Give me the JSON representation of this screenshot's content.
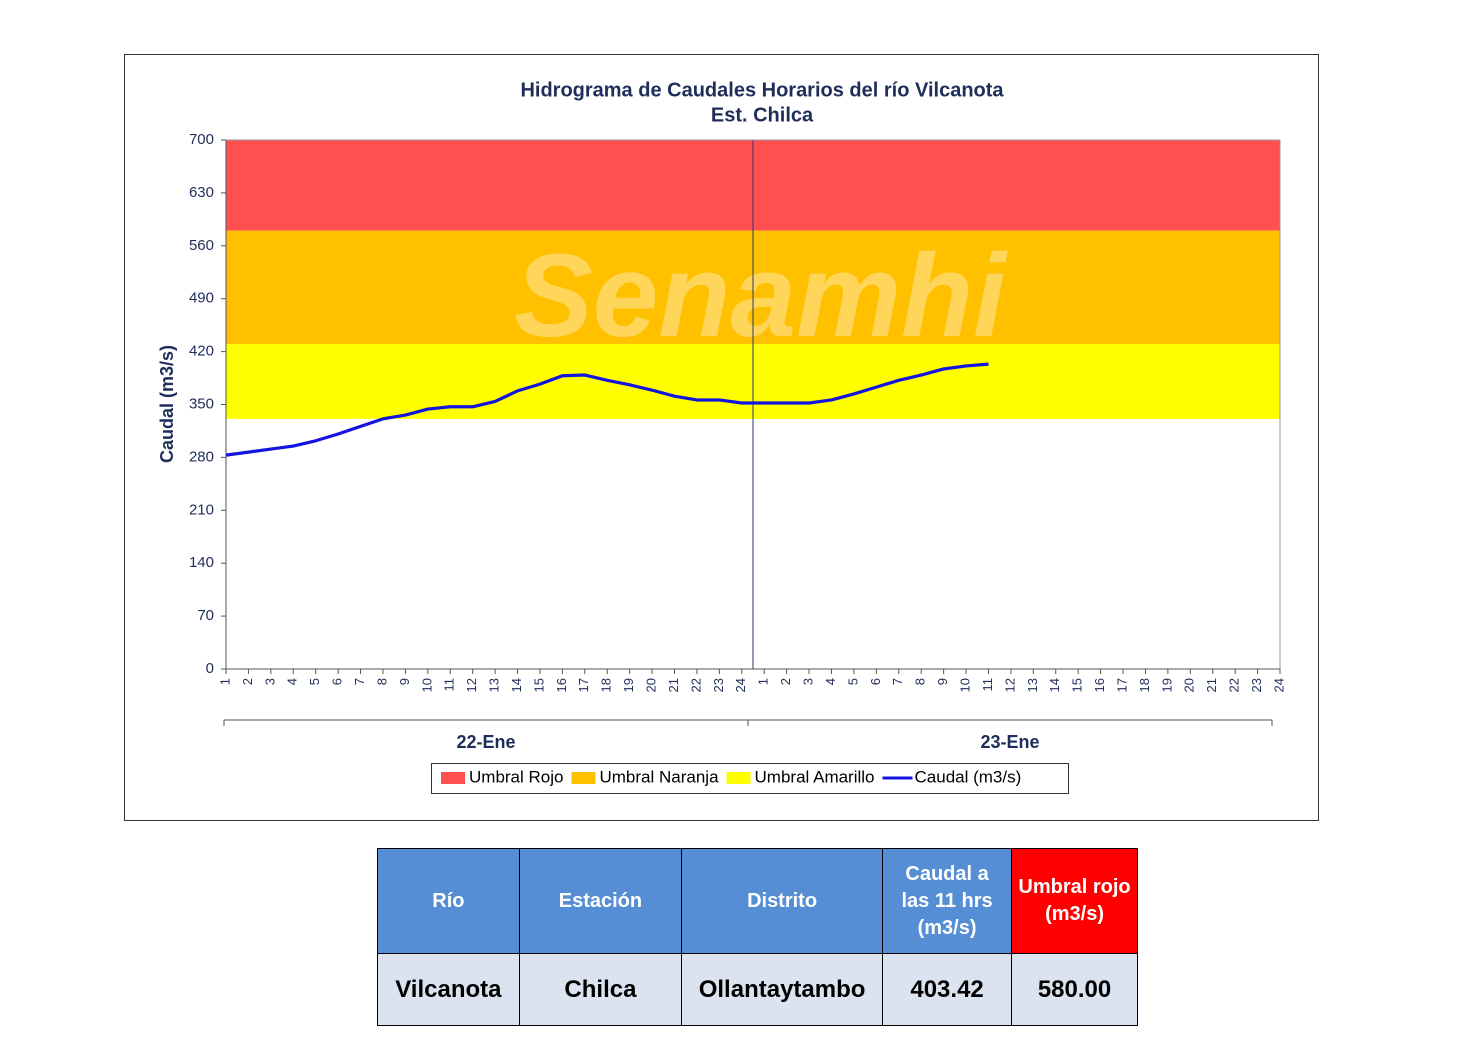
{
  "chart_data": {
    "type": "line",
    "title": "Hidrograma  de Caudales Horarios  del río Vilcanota",
    "subtitle": "Est. Chilca",
    "watermark": "Senamhi",
    "y_label": "Caudal (m3/s)",
    "categories": [
      1,
      2,
      3,
      4,
      5,
      6,
      7,
      8,
      9,
      10,
      11,
      12,
      13,
      14,
      15,
      16,
      17,
      18,
      19,
      20,
      21,
      22,
      23,
      24,
      1,
      2,
      3,
      4,
      5,
      6,
      7,
      8,
      9,
      10,
      11,
      12,
      13,
      14,
      15,
      16,
      17,
      18,
      19,
      20,
      21,
      22,
      23,
      24
    ],
    "x_groups": [
      "22-Ene",
      "23-Ene"
    ],
    "bands": [
      {
        "name": "Umbral Rojo",
        "color": "#ff5050",
        "from": 580
      },
      {
        "name": "Umbral Naranja",
        "color": "#ffc000",
        "from": 430
      },
      {
        "name": "Umbral Amarillo",
        "color": "#ffff00",
        "from": 330
      }
    ],
    "series": [
      {
        "name": "Caudal (m3/s)",
        "color": "#1414e0",
        "values": [
          283,
          287,
          291,
          295,
          302,
          311,
          321,
          331,
          336,
          344,
          347,
          347,
          354,
          368,
          377,
          388,
          389,
          382,
          376,
          369,
          361,
          356,
          356,
          352,
          352,
          352,
          352,
          356,
          364,
          373,
          382,
          389,
          397,
          401,
          403.42,
          null,
          null,
          null,
          null,
          null,
          null,
          null,
          null,
          null,
          null,
          null,
          null,
          null
        ]
      }
    ],
    "ylim": [
      0,
      700
    ],
    "yticks": [
      0,
      70,
      140,
      210,
      280,
      350,
      420,
      490,
      560,
      630,
      700
    ],
    "grid": false
  },
  "table": {
    "headers": [
      "Río",
      "Estación",
      "Distrito",
      "Caudal a las 11 hrs (m3/s)",
      "Umbral rojo (m3/s)"
    ],
    "rows": [
      [
        "Vilcanota",
        "Chilca",
        "Ollantaytambo",
        "403.42",
        "580.00"
      ]
    ]
  }
}
